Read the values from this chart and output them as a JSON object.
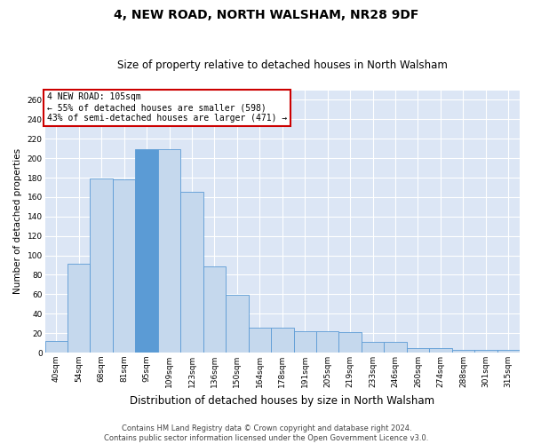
{
  "title": "4, NEW ROAD, NORTH WALSHAM, NR28 9DF",
  "subtitle": "Size of property relative to detached houses in North Walsham",
  "xlabel": "Distribution of detached houses by size in North Walsham",
  "ylabel": "Number of detached properties",
  "annotation_line1": "4 NEW ROAD: 105sqm",
  "annotation_line2": "← 55% of detached houses are smaller (598)",
  "annotation_line3": "43% of semi-detached houses are larger (471) →",
  "footer_line1": "Contains HM Land Registry data © Crown copyright and database right 2024.",
  "footer_line2": "Contains public sector information licensed under the Open Government Licence v3.0.",
  "categories": [
    "40sqm",
    "54sqm",
    "68sqm",
    "81sqm",
    "95sqm",
    "109sqm",
    "123sqm",
    "136sqm",
    "150sqm",
    "164sqm",
    "178sqm",
    "191sqm",
    "205sqm",
    "219sqm",
    "233sqm",
    "246sqm",
    "260sqm",
    "274sqm",
    "288sqm",
    "301sqm",
    "315sqm"
  ],
  "values": [
    12,
    91,
    179,
    178,
    209,
    209,
    165,
    89,
    59,
    26,
    26,
    22,
    22,
    21,
    11,
    11,
    5,
    5,
    3,
    3,
    3
  ],
  "bar_color_normal": "#c5d8ed",
  "bar_color_highlight": "#5b9bd5",
  "bar_edge_color": "#5b9bd5",
  "highlight_index": 4,
  "bg_color": "#dce6f5",
  "grid_color": "#ffffff",
  "fig_bg_color": "#ffffff",
  "annotation_box_color": "#ffffff",
  "annotation_box_edge": "#cc0000",
  "ylim": [
    0,
    270
  ],
  "yticks": [
    0,
    20,
    40,
    60,
    80,
    100,
    120,
    140,
    160,
    180,
    200,
    220,
    240,
    260
  ],
  "title_fontsize": 10,
  "subtitle_fontsize": 8.5,
  "ylabel_fontsize": 7.5,
  "xlabel_fontsize": 8.5,
  "tick_fontsize": 6.5,
  "footer_fontsize": 6,
  "ann_fontsize": 7
}
